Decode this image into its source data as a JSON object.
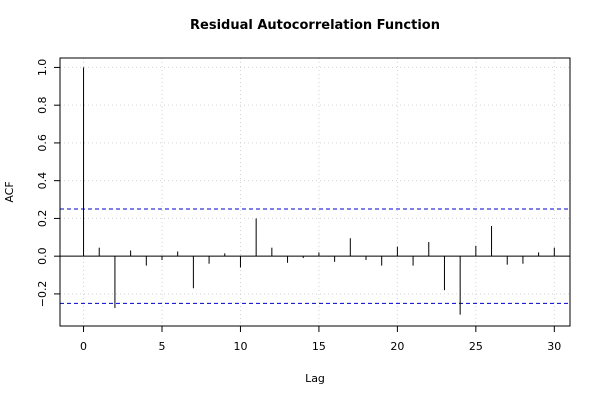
{
  "chart_data": {
    "type": "bar",
    "title": "Residual Autocorrelation Function",
    "xlabel": "Lag",
    "ylabel": "ACF",
    "xlim": [
      -1.5,
      31
    ],
    "ylim": [
      -0.37,
      1.05
    ],
    "x_ticks": [
      0,
      5,
      10,
      15,
      20,
      25,
      30
    ],
    "y_ticks": [
      -0.2,
      0.0,
      0.2,
      0.4,
      0.6,
      0.8,
      1.0
    ],
    "x_tick_labels": [
      "0",
      "5",
      "10",
      "15",
      "20",
      "25",
      "30"
    ],
    "y_tick_labels": [
      "−0.2",
      "0.0",
      "0.2",
      "0.4",
      "0.6",
      "0.8",
      "1.0"
    ],
    "grid": true,
    "lags": [
      0,
      1,
      2,
      3,
      4,
      5,
      6,
      7,
      8,
      9,
      10,
      11,
      12,
      13,
      14,
      15,
      16,
      17,
      18,
      19,
      20,
      21,
      22,
      23,
      24,
      25,
      26,
      27,
      28,
      29,
      30
    ],
    "values": [
      1.0,
      0.045,
      -0.275,
      0.03,
      -0.05,
      -0.02,
      0.025,
      -0.17,
      -0.04,
      0.015,
      -0.06,
      0.2,
      0.045,
      -0.035,
      -0.01,
      0.02,
      -0.03,
      0.095,
      -0.02,
      -0.05,
      0.05,
      -0.05,
      0.075,
      -0.18,
      -0.31,
      0.055,
      0.16,
      -0.045,
      -0.04,
      0.02,
      0.045
    ],
    "confidence_bounds": [
      0.25,
      -0.25
    ],
    "colors": {
      "spikes": "#000000",
      "bounds": "#0000cc",
      "grid": "#d3d3d3"
    }
  }
}
